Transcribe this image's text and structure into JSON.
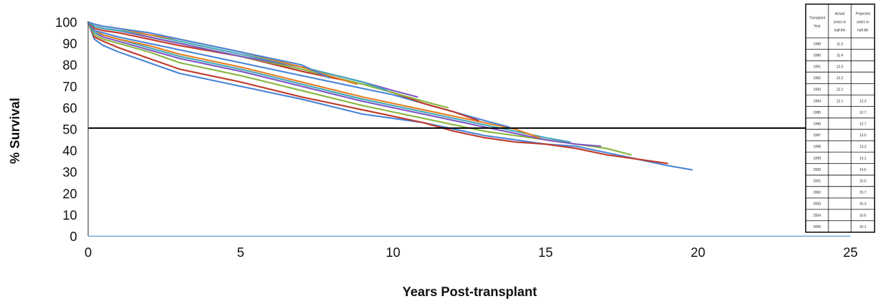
{
  "chart_data": {
    "type": "line",
    "xlabel": "Years Post-transplant",
    "ylabel": "% Survival",
    "xlim": [
      0,
      25
    ],
    "ylim": [
      0,
      100
    ],
    "x_ticks": [
      0,
      5,
      10,
      15,
      20,
      25
    ],
    "y_ticks": [
      0,
      10,
      20,
      30,
      40,
      50,
      60,
      70,
      80,
      90,
      100
    ],
    "reference_line": 50,
    "grid": false,
    "series": [
      {
        "color": "#4a86d8",
        "x": [
          0,
          0.2,
          0.5,
          1,
          2,
          3,
          5,
          7,
          9,
          10,
          11,
          12,
          13,
          14,
          15,
          16,
          17,
          18,
          19,
          19.8
        ],
        "y": [
          100,
          92,
          89,
          86,
          81,
          76,
          70,
          64,
          57,
          55,
          53,
          50,
          47,
          45,
          43,
          42,
          39,
          36,
          33,
          31
        ]
      },
      {
        "color": "#c0392b",
        "x": [
          0,
          0.2,
          0.5,
          1,
          2,
          3,
          5,
          7,
          9,
          10,
          11,
          12,
          13,
          14,
          15,
          16,
          17,
          18,
          19
        ],
        "y": [
          100,
          93,
          91,
          88,
          83,
          78,
          72,
          65,
          59,
          56,
          53,
          49,
          46,
          44,
          43,
          41,
          38,
          36,
          34
        ]
      },
      {
        "color": "#88b640",
        "x": [
          0,
          0.2,
          0.5,
          1,
          2,
          3,
          5,
          7,
          9,
          10,
          11,
          12,
          13,
          14,
          15,
          16,
          17,
          17.8
        ],
        "y": [
          100,
          94,
          92,
          90,
          86,
          81,
          75,
          68,
          61,
          58,
          55,
          52,
          49,
          47,
          45,
          43,
          41,
          38
        ]
      },
      {
        "color": "#7e57c2",
        "x": [
          0,
          0.2,
          0.5,
          1,
          2,
          3,
          5,
          7,
          9,
          10,
          11,
          12,
          13,
          14,
          15,
          16,
          16.8
        ],
        "y": [
          100,
          95,
          93,
          91,
          87,
          83,
          77,
          70,
          63,
          60,
          57,
          54,
          51,
          48,
          45,
          43,
          42
        ]
      },
      {
        "color": "#3fa7b8",
        "x": [
          0,
          0.2,
          0.5,
          1,
          2,
          3,
          5,
          7,
          9,
          10,
          11,
          12,
          13,
          14,
          15,
          15.8
        ],
        "y": [
          100,
          95,
          94,
          92,
          88,
          84,
          78,
          71,
          64,
          61,
          58,
          55,
          52,
          49,
          46,
          44
        ]
      },
      {
        "color": "#e67e22",
        "x": [
          0,
          0.2,
          0.5,
          1,
          2,
          3,
          5,
          7,
          9,
          10,
          11,
          12,
          13,
          14,
          14.8
        ],
        "y": [
          100,
          96,
          94,
          92,
          89,
          85,
          79,
          72,
          65,
          62,
          59,
          56,
          53,
          50,
          46
        ]
      },
      {
        "color": "#4a86d8",
        "x": [
          0,
          0.2,
          0.5,
          1,
          2,
          3,
          5,
          7,
          9,
          10,
          11,
          12,
          13,
          13.8
        ],
        "y": [
          100,
          96,
          95,
          93,
          90,
          87,
          81,
          75,
          69,
          66,
          62,
          58,
          54,
          51
        ]
      },
      {
        "color": "#c0392b",
        "x": [
          0,
          0.2,
          0.5,
          1,
          2,
          3,
          5,
          7,
          9,
          10,
          11,
          12,
          12.8
        ],
        "y": [
          100,
          97,
          96,
          95,
          92,
          89,
          84,
          77,
          71,
          67,
          62,
          58,
          54
        ]
      },
      {
        "color": "#88b640",
        "x": [
          0,
          0.2,
          0.5,
          1,
          2,
          3,
          5,
          7,
          9,
          10,
          11,
          11.8
        ],
        "y": [
          100,
          98,
          97,
          96,
          93,
          90,
          84,
          78,
          71,
          67,
          63,
          60
        ]
      },
      {
        "color": "#7e57c2",
        "x": [
          0,
          0.2,
          0.5,
          1,
          2,
          3,
          5,
          7,
          9,
          10,
          10.8
        ],
        "y": [
          100,
          98,
          97,
          96,
          93,
          90,
          84,
          79,
          72,
          68,
          65
        ]
      },
      {
        "color": "#3fa7b8",
        "x": [
          0,
          0.2,
          0.5,
          1,
          2,
          3,
          5,
          7,
          9,
          9.8
        ],
        "y": [
          100,
          98,
          97,
          96,
          94,
          91,
          85,
          79,
          72,
          68
        ]
      },
      {
        "color": "#e67e22",
        "x": [
          0,
          0.2,
          0.5,
          1,
          2,
          3,
          5,
          7,
          8.8
        ],
        "y": [
          100,
          99,
          98,
          97,
          94,
          92,
          86,
          79,
          71
        ]
      },
      {
        "color": "#4a86d8",
        "x": [
          0,
          0.2,
          0.5,
          1,
          2,
          3,
          5,
          7,
          7.9
        ],
        "y": [
          100,
          99,
          98,
          97,
          95,
          92,
          86,
          80,
          74
        ]
      }
    ]
  },
  "table": {
    "headers": [
      [
        "Transplant",
        "Year"
      ],
      [
        "Actual",
        "years to",
        "half-life"
      ],
      [
        "Projected",
        "years to",
        "half-life"
      ]
    ],
    "rows": [
      [
        "1989",
        "11.3",
        ""
      ],
      [
        "1990",
        "11.4",
        ""
      ],
      [
        "1991",
        "12.0",
        ""
      ],
      [
        "1992",
        "12.2",
        ""
      ],
      [
        "1993",
        "12.2",
        ""
      ],
      [
        "1994",
        "12.1",
        "12.3"
      ],
      [
        "1995",
        "",
        "12.7"
      ],
      [
        "1996",
        "",
        "12.7"
      ],
      [
        "1997",
        "",
        "13.0"
      ],
      [
        "1998",
        "",
        "13.3"
      ],
      [
        "1999",
        "",
        "14.1"
      ],
      [
        "2000",
        "",
        "14.6"
      ],
      [
        "2001",
        "",
        "15.0"
      ],
      [
        "2002",
        "",
        "15.7"
      ],
      [
        "2003",
        "",
        "16.3"
      ],
      [
        "2004",
        "",
        "16.5"
      ],
      [
        "2005",
        "",
        "16.1"
      ]
    ]
  }
}
